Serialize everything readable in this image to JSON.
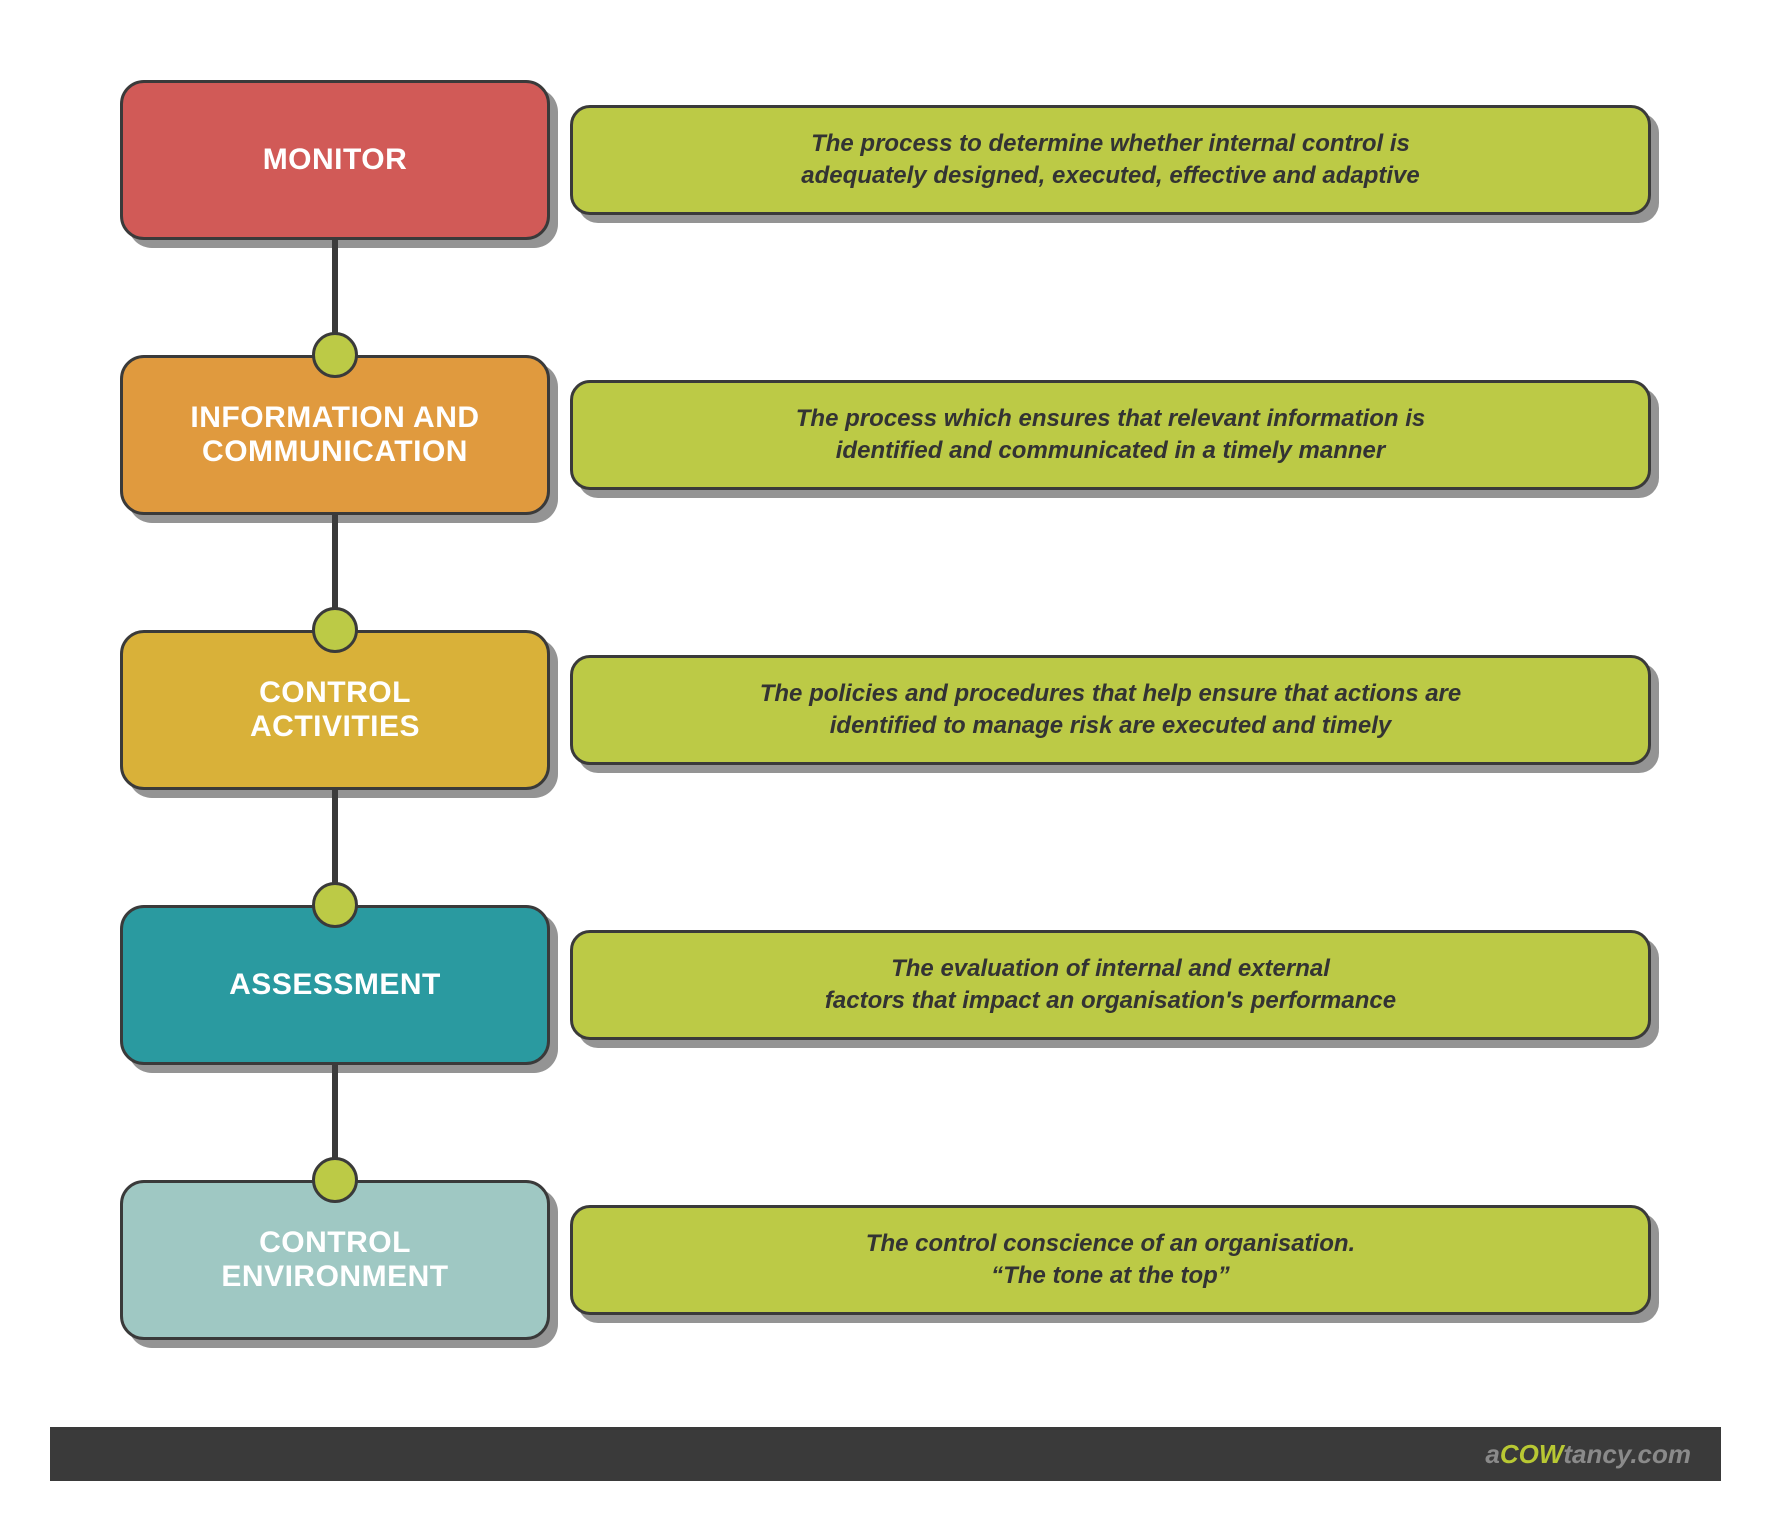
{
  "type": "flowchart",
  "background_color": "#ffffff",
  "border_color": "#3a3a3a",
  "shadow_color": "rgba(60,60,60,0.55)",
  "desc_bg_color": "#bcca46",
  "ball_fill": "#bcca46",
  "title_text_color": "#ffffff",
  "desc_text_color": "#333333",
  "title_fontsize": 30,
  "desc_fontsize": 24,
  "title_box_width": 430,
  "title_box_height": 160,
  "desc_box_height": 110,
  "border_radius": 24,
  "row_gap": 115,
  "items": [
    {
      "title": "MONITOR",
      "title_bg": "#d15a57",
      "desc": "The process to determine whether internal control is\nadequately designed, executed, effective and adaptive"
    },
    {
      "title": "INFORMATION AND\nCOMMUNICATION",
      "title_bg": "#e09a3e",
      "desc": "The process which ensures that relevant information is\nidentified and communicated in a timely  manner"
    },
    {
      "title": "CONTROL\nACTIVITIES",
      "title_bg": "#d9b139",
      "desc": "The policies and procedures that help ensure that actions are\nidentified to manage risk are executed and timely"
    },
    {
      "title": "ASSESSMENT",
      "title_bg": "#2a9aa0",
      "desc": "The evaluation of internal and external\nfactors that impact an organisation's performance"
    },
    {
      "title": "CONTROL\nENVIRONMENT",
      "title_bg": "#9fc8c3",
      "desc": "The control conscience of an organisation.\n“The tone at the top”"
    }
  ],
  "footer": {
    "part1": "a",
    "part2": "COW",
    "part3": "tancy.com",
    "bg": "#3a3a3a",
    "part1_color": "#8a8a8a",
    "part2_color": "#b8c833",
    "part3_color": "#8a8a8a"
  }
}
